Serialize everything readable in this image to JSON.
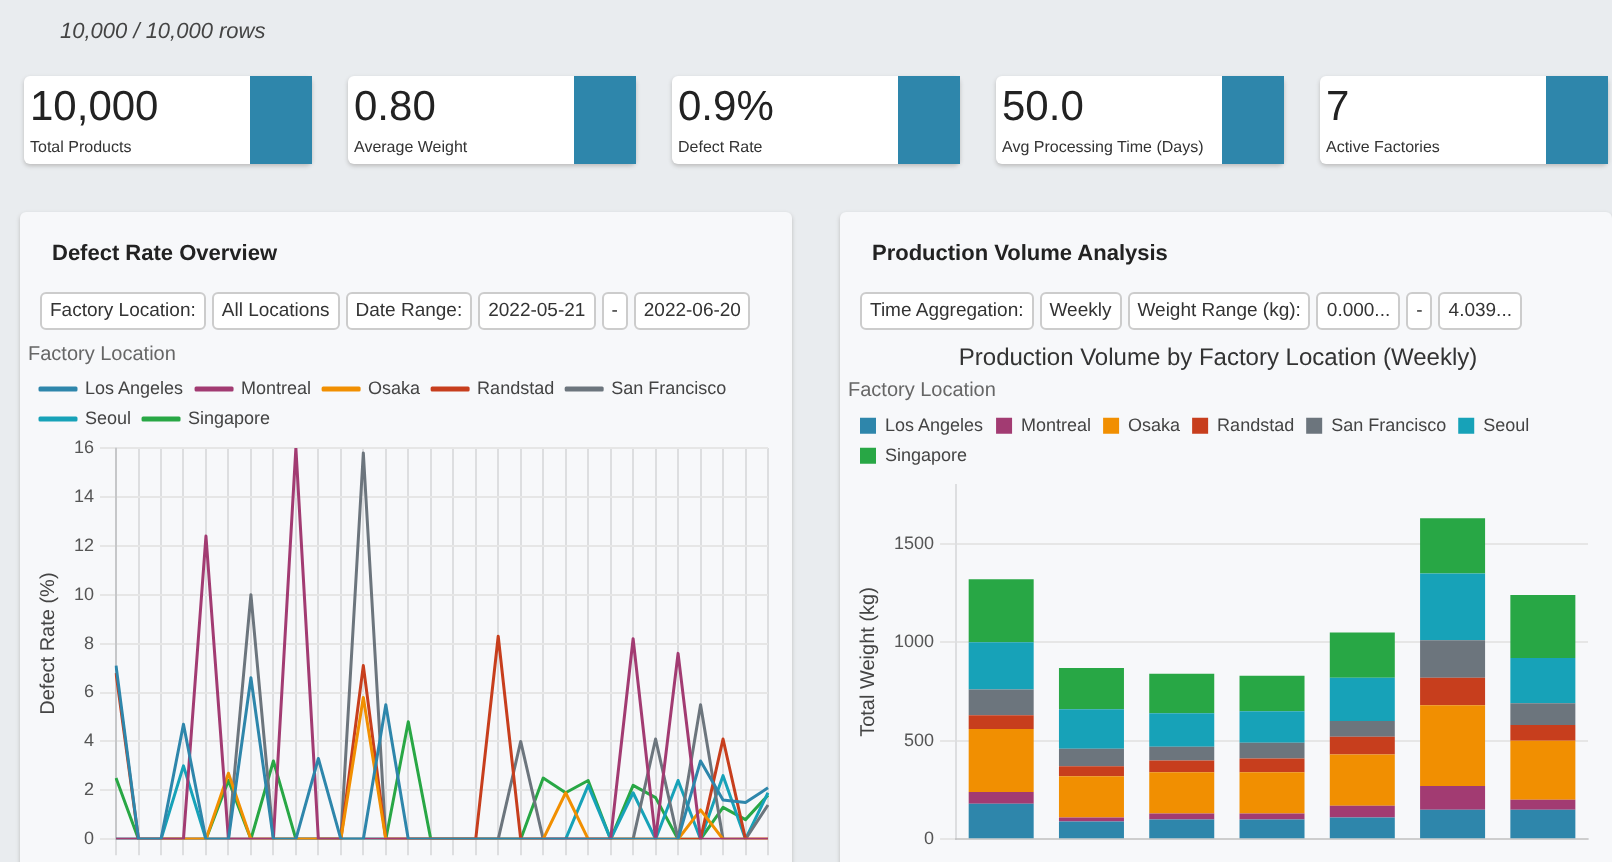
{
  "chart_data": [
    {
      "type": "other",
      "title": "10,000 / 10,000 rows",
      "color": "#2e86ab",
      "annotations": [
        "10,000",
        "Total Products",
        "0.80",
        "Average Weight",
        "0.9%",
        "Defect Rate",
        "50.0",
        "Avg Processing Time (Days)",
        "7",
        "Active Factories"
      ]
    },
    {
      "type": "line",
      "title": "Defect Rate Overview",
      "annotations": [
        "Factory Location:",
        "All Locations",
        "Date Range:",
        "2022-05-21",
        "-",
        "2022-06-20"
      ],
      "ylabel": "Defect Rate (%)",
      "legend_title": "Factory Location",
      "legend": "top",
      "grid": true,
      "marker": "none",
      "tick_labels": "y",
      "categories": [
        null,
        null,
        null,
        null,
        null,
        null,
        null,
        null,
        null,
        null,
        null,
        null,
        null,
        null,
        null,
        null,
        null,
        null,
        null,
        null,
        null,
        null,
        null,
        null,
        null,
        null,
        null,
        null,
        null,
        null
      ],
      "ylim": [
        0,
        16
      ],
      "yticks": [
        0,
        2,
        4,
        6,
        8,
        10,
        12,
        14,
        16
      ],
      "series": [
        {
          "name": "Los Angeles",
          "color": "#2e86ab",
          "values": [
            7.1,
            0,
            0,
            4.7,
            0,
            0,
            6.6,
            0,
            0,
            3.3,
            0,
            0,
            5.5,
            0,
            0,
            0,
            0,
            0,
            0,
            0,
            0,
            0,
            0,
            0,
            0,
            0,
            3.2,
            1.6,
            1.5,
            2.1
          ]
        },
        {
          "name": "Montreal",
          "color": "#a23b72",
          "values": [
            0,
            0,
            0,
            0,
            12.4,
            0,
            0,
            0,
            16,
            0,
            0,
            0,
            0,
            0,
            0,
            0,
            0,
            0,
            0,
            0,
            0,
            0,
            0,
            8.2,
            0,
            7.6,
            0,
            0,
            0,
            0
          ]
        },
        {
          "name": "Osaka",
          "color": "#f18f01",
          "values": [
            null,
            null,
            0,
            0,
            0,
            2.7,
            0,
            0,
            0,
            0,
            0,
            5.8,
            0,
            0,
            0,
            0,
            0,
            0,
            0,
            0,
            1.9,
            0,
            0,
            0,
            0,
            0,
            1.2,
            0,
            0,
            0
          ]
        },
        {
          "name": "Randstad",
          "color": "#c73e1d",
          "values": [
            6.8,
            0,
            0,
            0,
            0,
            0,
            0,
            0,
            0,
            0,
            0,
            7.1,
            0,
            0,
            0,
            0,
            0,
            8.3,
            0,
            0,
            0,
            0,
            0,
            0,
            0,
            0,
            0,
            4.1,
            0,
            0
          ]
        },
        {
          "name": "San Francisco",
          "color": "#6c757d",
          "values": [
            0,
            0,
            0,
            0,
            0,
            0,
            10,
            0,
            0,
            0,
            0,
            15.8,
            0,
            0,
            0,
            0,
            0,
            0,
            4.0,
            0,
            0,
            0,
            0,
            0,
            4.1,
            0,
            5.5,
            0,
            0,
            1.4
          ]
        },
        {
          "name": "Seoul",
          "color": "#17a2b8",
          "values": [
            0,
            0,
            0,
            3.0,
            0,
            0,
            0,
            0,
            0,
            0,
            0,
            0,
            0,
            0,
            0,
            0,
            0,
            0,
            0,
            0,
            0,
            2.2,
            0,
            1.9,
            0,
            2.4,
            0,
            2.6,
            0,
            1.9
          ]
        },
        {
          "name": "Singapore",
          "color": "#28a745",
          "values": [
            2.5,
            0,
            0,
            0,
            0,
            2.4,
            0,
            3.2,
            0,
            0,
            0,
            0,
            0,
            4.8,
            0,
            0,
            0,
            0,
            0,
            2.5,
            1.9,
            2.4,
            0,
            2.2,
            1.7,
            0,
            0,
            1.3,
            0.8,
            1.8
          ]
        }
      ]
    },
    {
      "type": "bar",
      "stacked": true,
      "title": "Production Volume Analysis",
      "subtitle": "Production Volume by Factory Location (Weekly)",
      "annotations": [
        "Time Aggregation:",
        "Weekly",
        "Weight Range (kg):",
        "0.000...",
        "-",
        "4.039..."
      ],
      "ylabel": "Total Weight (kg)",
      "legend_title": "Factory Location",
      "legend": "top",
      "grid": "y",
      "tick_labels": "y",
      "categories": [
        null,
        null,
        null,
        null,
        null,
        null,
        null
      ],
      "ylim": [
        0,
        1800
      ],
      "yticks": [
        0,
        500,
        1000,
        1500
      ],
      "series": [
        {
          "name": "Los Angeles",
          "color": "#2e86ab",
          "values": [
            180,
            90,
            100,
            100,
            110,
            150,
            150
          ]
        },
        {
          "name": "Montreal",
          "color": "#a23b72",
          "values": [
            60,
            20,
            30,
            30,
            60,
            120,
            50
          ]
        },
        {
          "name": "Osaka",
          "color": "#f18f01",
          "values": [
            320,
            210,
            210,
            210,
            260,
            410,
            300
          ]
        },
        {
          "name": "Randstad",
          "color": "#c73e1d",
          "values": [
            70,
            50,
            60,
            70,
            90,
            140,
            80
          ]
        },
        {
          "name": "San Francisco",
          "color": "#6c757d",
          "values": [
            130,
            90,
            70,
            80,
            80,
            190,
            110
          ]
        },
        {
          "name": "Seoul",
          "color": "#17a2b8",
          "values": [
            240,
            200,
            170,
            160,
            220,
            340,
            230
          ]
        },
        {
          "name": "Singapore",
          "color": "#28a745",
          "values": [
            320,
            210,
            200,
            180,
            230,
            280,
            320
          ]
        }
      ]
    }
  ]
}
